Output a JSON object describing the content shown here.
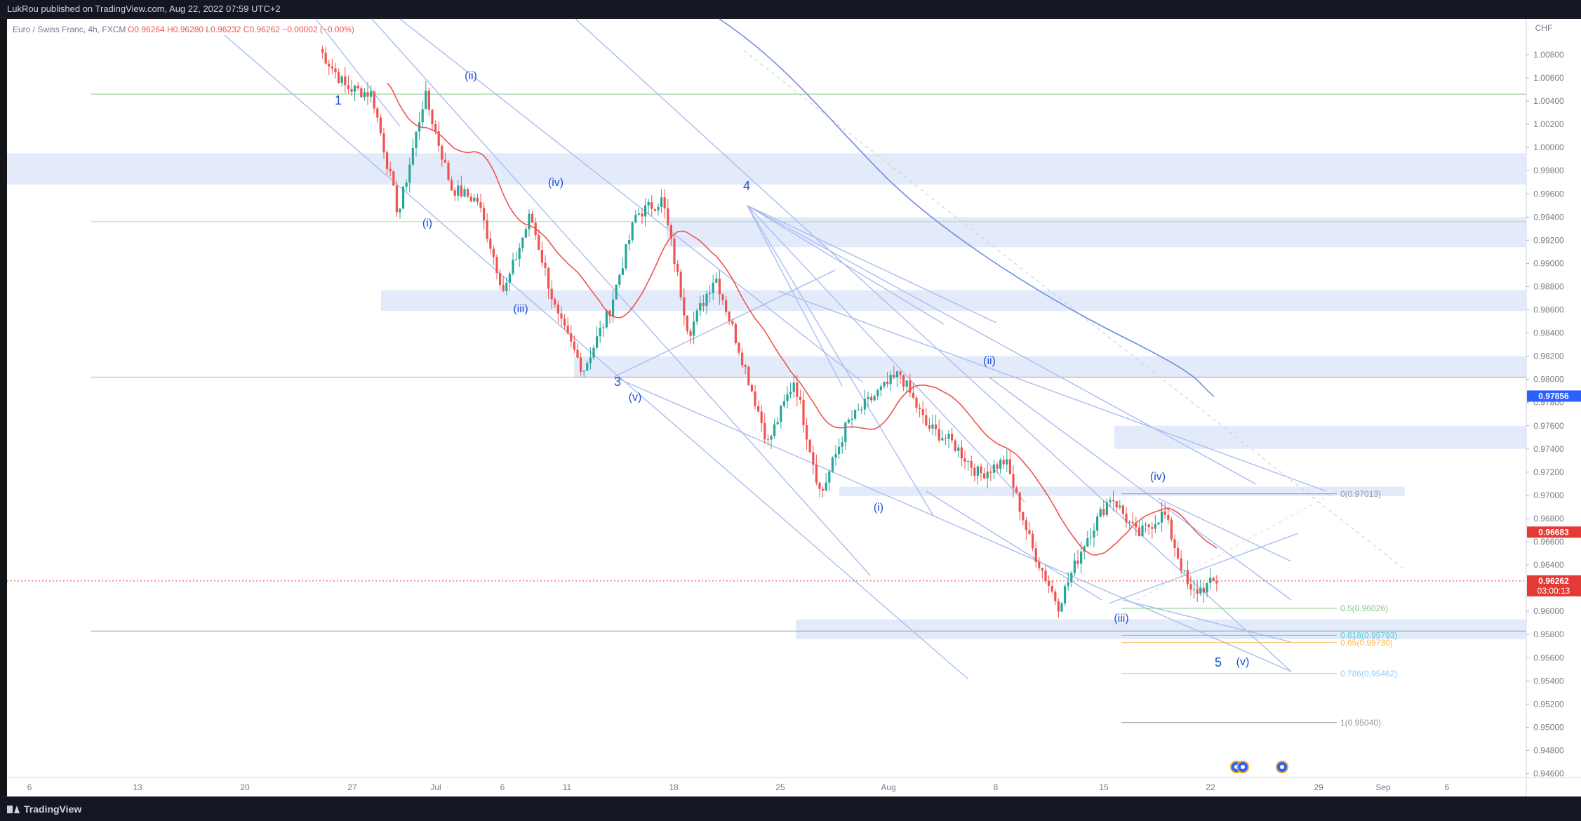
{
  "header": {
    "publisher_line": "LukRou published on TradingView.com, Aug 22, 2022 07:59 UTC+2"
  },
  "legend": {
    "symbol": "Euro / Swiss Franc, 4h, FXCM",
    "ohlc": "O0.96264 H0.96280 L0.96232 C0.96262 −0.00002 (−0.00%)"
  },
  "footer": {
    "brand": "TradingView"
  },
  "colors": {
    "background": "#ffffff",
    "up_candle": "#26a69a",
    "down_candle": "#ef5350",
    "trendline": "#a9bdf0",
    "zone": "#e3ebfb",
    "ma": "#ef5350",
    "ma_long": "#6e8ee0",
    "wave_label": "#1e4fd8",
    "axis_text": "#787b86",
    "current_price": "#e53935",
    "blue_price": "#2962ff"
  },
  "chart_data": {
    "type": "candlestick",
    "currency": "CHF",
    "ylim": [
      0.9458,
      1.0102
    ],
    "y_ticks": [
      "1.00800",
      "1.00600",
      "1.00400",
      "1.00200",
      "1.00000",
      "0.99800",
      "0.99600",
      "0.99400",
      "0.99200",
      "0.99000",
      "0.98800",
      "0.98600",
      "0.98400",
      "0.98200",
      "0.98000",
      "0.97800",
      "0.97600",
      "0.97400",
      "0.97200",
      "0.97000",
      "0.96800",
      "0.96600",
      "0.96400",
      "0.96200",
      "0.96000",
      "0.95800",
      "0.95600",
      "0.95400",
      "0.95200",
      "0.95000",
      "0.94800",
      "0.94600"
    ],
    "x_ticks": [
      "6",
      "13",
      "20",
      "27",
      "Jul",
      "6",
      "11",
      "18",
      "25",
      "Aug",
      "8",
      "15",
      "22",
      "29",
      "Sep",
      "6"
    ],
    "price_tags": [
      {
        "label": "0.97856",
        "value": 0.97856,
        "color": "#2962ff"
      },
      {
        "label": "0.96683",
        "value": 0.96683,
        "color": "#e53935"
      },
      {
        "label": "0.96262",
        "value": 0.96262,
        "color": "#e53935",
        "countdown": "03:00:13"
      }
    ],
    "ohlc_last": {
      "open": 0.96264,
      "high": 0.9628,
      "low": 0.96232,
      "close": 0.96262
    },
    "fibonacci": [
      {
        "label": "0(0.97013)",
        "value": 0.97013,
        "color": "#9598a1"
      },
      {
        "label": "0.5(0.96026)",
        "value": 0.96026,
        "color": "#81c784"
      },
      {
        "label": "0.618(0.95793)",
        "value": 0.95793,
        "color": "#4dd0e1"
      },
      {
        "label": "0.65(0.95730)",
        "value": 0.9573,
        "color": "#ffb74d"
      },
      {
        "label": "0.786(0.95462)",
        "value": 0.95462,
        "color": "#90caf9"
      },
      {
        "label": "1(0.95040)",
        "value": 0.9504,
        "color": "#9598a1"
      }
    ],
    "wave_labels": [
      "1",
      "(ii)",
      "(i)",
      "(iv)",
      "(iii)",
      "4",
      "3",
      "(v)",
      "(ii)",
      "(i)",
      "(iv)",
      "(iii)",
      "5",
      "(v)"
    ],
    "horizontal_lines": [
      {
        "value": 1.0046,
        "color": "#81c784"
      },
      {
        "value": 0.9936,
        "color": "#a5d6a7"
      },
      {
        "value": 0.9802,
        "color": "#ef9a9a"
      },
      {
        "value": 0.9583,
        "color": "#9598a1"
      }
    ],
    "zones": [
      {
        "from": 0.9995,
        "to": 0.9968
      },
      {
        "from": 0.994,
        "to": 0.9914
      },
      {
        "from": 0.9877,
        "to": 0.9859
      },
      {
        "from": 0.982,
        "to": 0.9801
      },
      {
        "from": 0.976,
        "to": 0.974
      },
      {
        "from": 0.97075,
        "to": 0.96995
      },
      {
        "from": 0.9593,
        "to": 0.9576
      }
    ],
    "swing_points": [
      1.0085,
      1.0052,
      1.0046,
      0.9942,
      1.0046,
      0.9965,
      0.9954,
      0.9875,
      0.9942,
      0.9855,
      0.9808,
      0.986,
      0.9942,
      0.9955,
      0.984,
      0.989,
      0.982,
      0.9745,
      0.98,
      0.97,
      0.9762,
      0.9785,
      0.9805,
      0.976,
      0.9745,
      0.9718,
      0.973,
      0.9655,
      0.9605,
      0.966,
      0.97,
      0.9665,
      0.9685,
      0.9615,
      0.9626
    ]
  }
}
